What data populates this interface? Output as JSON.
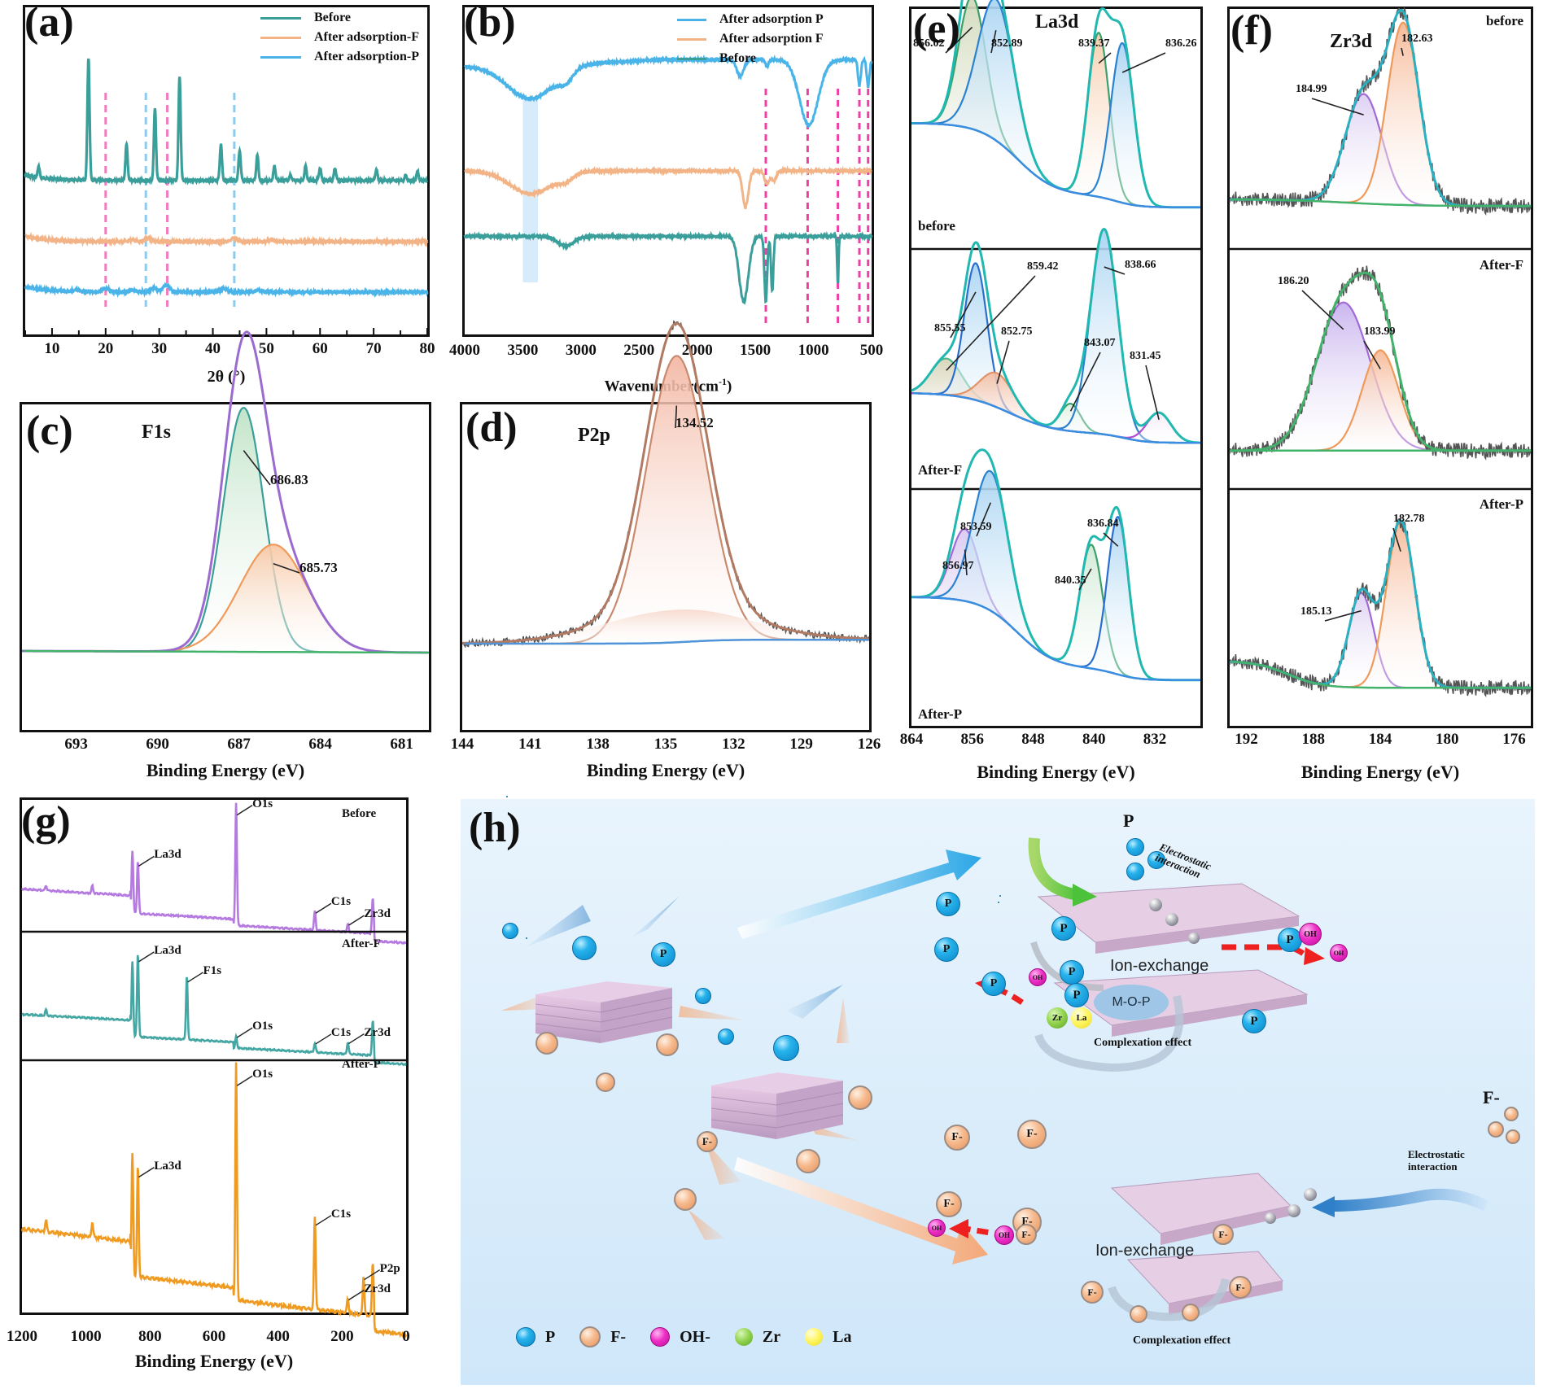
{
  "figure": {
    "panels": {
      "a": {
        "label": "(a)"
      },
      "b": {
        "label": "(b)"
      },
      "c": {
        "label": "(c)"
      },
      "d": {
        "label": "(d)"
      },
      "e": {
        "label": "(e)"
      },
      "f": {
        "label": "(f)"
      },
      "g": {
        "label": "(g)"
      },
      "h": {
        "label": "(h)"
      }
    }
  },
  "chart_data": [
    {
      "id": "a",
      "type": "line",
      "title": "",
      "xlabel": "2θ (°)",
      "ylabel": "",
      "xlim": [
        5,
        80
      ],
      "xticks": [
        10,
        20,
        30,
        40,
        50,
        60,
        70,
        80
      ],
      "legend_position": "top-right",
      "series": [
        {
          "name": "Before",
          "color": "#3a9e9a",
          "offset": 0.72,
          "peaks": [
            [
              7.5,
              0.06
            ],
            [
              16.8,
              0.68
            ],
            [
              23.9,
              0.2
            ],
            [
              29.2,
              0.4
            ],
            [
              33.8,
              0.58
            ],
            [
              41.5,
              0.2
            ],
            [
              45.0,
              0.17
            ],
            [
              48.3,
              0.14
            ],
            [
              51.5,
              0.08
            ],
            [
              54.5,
              0.03
            ],
            [
              57.3,
              0.08
            ],
            [
              60.0,
              0.07
            ],
            [
              62.8,
              0.07
            ],
            [
              70.5,
              0.06
            ],
            [
              76.0,
              0.03
            ],
            [
              78.2,
              0.05
            ]
          ]
        },
        {
          "name": "After adsorption-F",
          "color": "#f2b487",
          "offset": 0.38,
          "peaks": [
            [
              25.0,
              0.01
            ],
            [
              27.9,
              0.02
            ],
            [
              44.0,
              0.02
            ],
            [
              51.0,
              0.01
            ]
          ]
        },
        {
          "name": "After adsorption-P",
          "color": "#4ab4e8",
          "offset": 0.1,
          "peaks": [
            [
              14.5,
              0.01
            ],
            [
              20.0,
              0.02
            ],
            [
              25.0,
              0.01
            ],
            [
              29.0,
              0.02
            ],
            [
              31.3,
              0.04
            ],
            [
              42.0,
              0.02
            ],
            [
              48.5,
              0.01
            ]
          ]
        }
      ],
      "reference_lines": [
        {
          "x": 20.0,
          "color": "#f27bbd"
        },
        {
          "x": 27.5,
          "color": "#8ccbee"
        },
        {
          "x": 31.5,
          "color": "#f27bbd"
        },
        {
          "x": 44.0,
          "color": "#8ccbee"
        }
      ]
    },
    {
      "id": "b",
      "type": "line",
      "title": "",
      "xlabel": "Wavenumber(cm-1)",
      "xlabel_main": "Wavenumber(cm",
      "xlabel_sup": "-1",
      "xlabel_end": ")",
      "ylabel": "",
      "xlim": [
        4000,
        500
      ],
      "xticks": [
        4000,
        3500,
        3000,
        2500,
        2000,
        1500,
        1000,
        500
      ],
      "legend_position": "top-right",
      "highlight_band": [
        3500,
        3370
      ],
      "series": [
        {
          "name": "After adsorption P",
          "color": "#4ab4e8",
          "offset": 0.82,
          "dips": [
            [
              3430,
              0.1,
              200
            ],
            [
              3130,
              0.03,
              60
            ],
            [
              1630,
              0.05,
              30
            ],
            [
              1400,
              0.02,
              15
            ],
            [
              1040,
              0.2,
              80
            ],
            [
              605,
              0.08,
              12
            ],
            [
              530,
              0.08,
              12
            ]
          ]
        },
        {
          "name": "After adsorption F",
          "color": "#f2b487",
          "offset": 0.5,
          "dips": [
            [
              3430,
              0.07,
              180
            ],
            [
              3130,
              0.02,
              60
            ],
            [
              1585,
              0.11,
              25
            ],
            [
              1400,
              0.04,
              20
            ],
            [
              1340,
              0.03,
              20
            ]
          ]
        },
        {
          "name": "Before",
          "color": "#3a9e9a",
          "offset": 0.3,
          "dips": [
            [
              3130,
              0.03,
              70
            ],
            [
              1600,
              0.2,
              40
            ],
            [
              1410,
              0.2,
              12
            ],
            [
              1355,
              0.17,
              10
            ],
            [
              790,
              0.15,
              6
            ]
          ]
        }
      ],
      "reference_lines": [
        {
          "x": 1410,
          "color": "#ee3fa7"
        },
        {
          "x": 1050,
          "color": "#ee3fa7"
        },
        {
          "x": 790,
          "color": "#ee3fa7"
        },
        {
          "x": 605,
          "color": "#ee3fa7"
        },
        {
          "x": 530,
          "color": "#ee3fa7"
        }
      ]
    },
    {
      "id": "c",
      "type": "area",
      "title": "F1s",
      "xlabel": "Binding Energy (eV)",
      "xlim": [
        695,
        680
      ],
      "xticks": [
        693,
        690,
        687,
        684,
        681
      ],
      "envelope_color": "#9b6bd0",
      "baseline_color": "#43b26b",
      "components": [
        {
          "center": 686.83,
          "label": "686.83",
          "height": 0.75,
          "width": 0.75,
          "color": "#3a9e9a",
          "fill": "#bfe3c6"
        },
        {
          "center": 685.73,
          "label": "685.73",
          "height": 0.33,
          "width": 1.25,
          "color": "#ef9a5a",
          "fill": "#f8c7a4"
        }
      ]
    },
    {
      "id": "d",
      "type": "area",
      "title": "P2p",
      "xlabel": "Binding Energy (eV)",
      "xlim": [
        144,
        126
      ],
      "xticks": [
        144,
        141,
        138,
        135,
        132,
        129,
        126
      ],
      "envelope_color": "#b27a62",
      "baseline_color": "#4f93d8",
      "components": [
        {
          "center": 134.52,
          "label": "134.52",
          "height": 0.88,
          "width": 1.35,
          "color": "#c98a6e",
          "fill": "#f3b8a4"
        }
      ]
    },
    {
      "id": "e",
      "type": "area",
      "title": "La3d",
      "xlabel": "Binding Energy (eV)",
      "xlim": [
        864,
        826
      ],
      "xticks": [
        864,
        856,
        848,
        840,
        832
      ],
      "subpanels": [
        {
          "name": "before",
          "components": [
            {
              "center": 856.02,
              "label": "856.02",
              "height": 0.58,
              "width": 1.8,
              "color": "#3aa16a",
              "fill": "#cfd8b8"
            },
            {
              "center": 852.89,
              "label": "852.89",
              "height": 0.62,
              "width": 2.4,
              "color": "#2a82d0",
              "fill": "#a9d4f2"
            },
            {
              "center": 839.37,
              "label": "839.37",
              "height": 0.72,
              "width": 1.4,
              "color": "#3aa16a",
              "fill": "#f6ccaa"
            },
            {
              "center": 836.26,
              "label": "836.26",
              "height": 0.7,
              "width": 1.5,
              "color": "#2a82d0",
              "fill": "#a9d4f2"
            }
          ]
        },
        {
          "name": "After-F",
          "components": [
            {
              "center": 859.42,
              "label": "859.42",
              "height": 0.16,
              "width": 2.0,
              "color": "#4fb78c",
              "fill": "#d6d4b8"
            },
            {
              "center": 855.55,
              "label": "855.55",
              "height": 0.6,
              "width": 1.5,
              "color": "#2a6fd0",
              "fill": "#a9d4f2"
            },
            {
              "center": 852.75,
              "label": "852.75",
              "height": 0.15,
              "width": 2.2,
              "color": "#e0936a",
              "fill": "#f3bea4"
            },
            {
              "center": 843.07,
              "label": "843.07",
              "height": 0.12,
              "width": 1.3,
              "color": "#3aa16a",
              "fill": "#cde9d3"
            },
            {
              "center": 838.66,
              "label": "838.66",
              "height": 0.9,
              "width": 1.8,
              "color": "#2a82d0",
              "fill": "#a9d4f2"
            },
            {
              "center": 831.45,
              "label": "831.45",
              "height": 0.13,
              "width": 1.6,
              "color": "#b04dd0",
              "fill": "#e4cfef"
            }
          ]
        },
        {
          "name": "After-P",
          "components": [
            {
              "center": 856.97,
              "label": "856.97",
              "height": 0.32,
              "width": 1.8,
              "color": "#a26ad6",
              "fill": "#d9c9f0"
            },
            {
              "center": 853.59,
              "label": "853.59",
              "height": 0.62,
              "width": 2.3,
              "color": "#2a82d0",
              "fill": "#a9d4f2"
            },
            {
              "center": 840.35,
              "label": "840.35",
              "height": 0.55,
              "width": 1.5,
              "color": "#3aa16a",
              "fill": "#cfe9d4"
            },
            {
              "center": 836.84,
              "label": "836.84",
              "height": 0.7,
              "width": 1.4,
              "color": "#2a6fd0",
              "fill": "#a9d4f2"
            }
          ]
        }
      ]
    },
    {
      "id": "f",
      "type": "area",
      "title": "Zr3d",
      "xlabel": "Binding Energy (eV)",
      "xlim": [
        193,
        175
      ],
      "xticks": [
        192,
        188,
        184,
        180,
        176
      ],
      "subpanels": [
        {
          "name": "before",
          "components": [
            {
              "center": 184.99,
              "label": "184.99",
              "height": 0.48,
              "width": 1.1,
              "color": "#a26ad6",
              "fill": "#dccff2"
            },
            {
              "center": 182.63,
              "label": "182.63",
              "height": 0.8,
              "width": 0.95,
              "color": "#ef9a5a",
              "fill": "#f6b896"
            }
          ]
        },
        {
          "name": "After-F",
          "components": [
            {
              "center": 186.2,
              "label": "186.20",
              "height": 0.65,
              "width": 1.6,
              "color": "#a26ad6",
              "fill": "#c7b2ee"
            },
            {
              "center": 183.99,
              "label": "183.99",
              "height": 0.44,
              "width": 1.1,
              "color": "#ef9a5a",
              "fill": "#f6b896"
            }
          ]
        },
        {
          "name": "After-P",
          "components": [
            {
              "center": 185.13,
              "label": "185.13",
              "height": 0.42,
              "width": 0.75,
              "color": "#a26ad6",
              "fill": "#dccff2"
            },
            {
              "center": 182.78,
              "label": "182.78",
              "height": 0.74,
              "width": 0.85,
              "color": "#ef9a5a",
              "fill": "#f6b896"
            }
          ]
        }
      ]
    },
    {
      "id": "g",
      "type": "line",
      "title": "",
      "xlabel": "Binding Energy (eV)",
      "xlim": [
        1200,
        0
      ],
      "xticks": [
        1200,
        1000,
        800,
        600,
        400,
        200,
        0
      ],
      "subpanels": [
        {
          "name": "Before",
          "color": "#b57ae0",
          "peaks": [
            [
              1125,
              0.04
            ],
            [
              980,
              0.06
            ],
            [
              855,
              0.5
            ],
            [
              838,
              0.42
            ],
            [
              531,
              0.98
            ],
            [
              285,
              0.15
            ],
            [
              182,
              0.06
            ],
            [
              104,
              0.28
            ]
          ],
          "labels": [
            {
              "text": "La3d",
              "x": 838
            },
            {
              "text": "O1s",
              "x": 531
            },
            {
              "text": "C1s",
              "x": 285
            },
            {
              "text": "Zr3d",
              "x": 182
            }
          ]
        },
        {
          "name": "After-F",
          "color": "#45a7a3",
          "peaks": [
            [
              1125,
              0.05
            ],
            [
              855,
              0.65
            ],
            [
              838,
              0.72
            ],
            [
              685,
              0.55
            ],
            [
              531,
              0.1
            ],
            [
              285,
              0.08
            ],
            [
              182,
              0.1
            ],
            [
              104,
              0.3
            ]
          ],
          "labels": [
            {
              "text": "La3d",
              "x": 838
            },
            {
              "text": "F1s",
              "x": 685
            },
            {
              "text": "O1s",
              "x": 531
            },
            {
              "text": "C1s",
              "x": 285
            },
            {
              "text": "Zr3d",
              "x": 182
            }
          ]
        },
        {
          "name": "After-P",
          "color": "#ef9a20",
          "peaks": [
            [
              1125,
              0.05
            ],
            [
              980,
              0.06
            ],
            [
              855,
              0.5
            ],
            [
              838,
              0.45
            ],
            [
              531,
              0.97
            ],
            [
              285,
              0.38
            ],
            [
              182,
              0.06
            ],
            [
              133,
              0.16
            ],
            [
              104,
              0.22
            ]
          ],
          "labels": [
            {
              "text": "La3d",
              "x": 838
            },
            {
              "text": "O1s",
              "x": 531
            },
            {
              "text": "C1s",
              "x": 285
            },
            {
              "text": "Zr3d",
              "x": 182
            },
            {
              "text": "P2p",
              "x": 133
            }
          ]
        }
      ]
    }
  ],
  "schematic": {
    "p_label": "P",
    "f_label": "F-",
    "electrostatic_line1": "Electrostatic",
    "electrostatic_line2": "interaction",
    "ion_exchange": "Ion-exchange",
    "complexation": "Complexation effect",
    "mop": "M-O-P",
    "oh": "OH",
    "zr": "Zr",
    "la": "La",
    "legend": [
      {
        "label": "P",
        "kind": "p"
      },
      {
        "label": "F-",
        "kind": "f"
      },
      {
        "label": "OH-",
        "kind": "oh"
      },
      {
        "label": "Zr",
        "kind": "zr"
      },
      {
        "label": "La",
        "kind": "la"
      }
    ]
  }
}
